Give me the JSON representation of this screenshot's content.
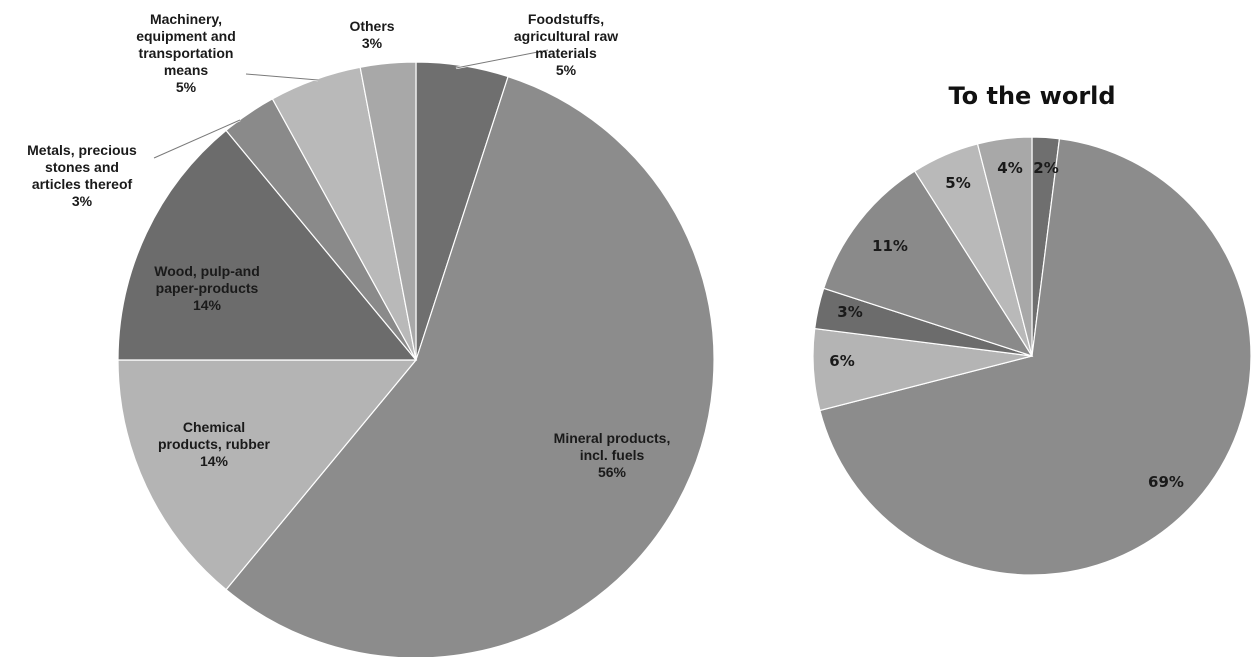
{
  "chart_data": [
    {
      "type": "pie",
      "title": "",
      "slices": [
        {
          "label_lines": [
            "Foodstuffs,",
            "agricultural raw",
            "materials",
            "5%"
          ],
          "value": 5,
          "color": "#6f6f6f"
        },
        {
          "label_lines": [
            "Mineral products,",
            "incl. fuels",
            "56%"
          ],
          "value": 56,
          "color": "#8c8c8c"
        },
        {
          "label_lines": [
            "Chemical",
            "products, rubber",
            "14%"
          ],
          "value": 14,
          "color": "#b4b4b4"
        },
        {
          "label_lines": [
            "Wood, pulp-and",
            "paper-products",
            "14%"
          ],
          "value": 14,
          "color": "#6c6c6c"
        },
        {
          "label_lines": [
            "Metals, precious",
            "stones and",
            "articles thereof",
            "3%"
          ],
          "value": 3,
          "color": "#8a8a8a"
        },
        {
          "label_lines": [
            "Machinery,",
            "equipment and",
            "transportation",
            "means",
            "5%"
          ],
          "value": 5,
          "color": "#b9b9b9"
        },
        {
          "label_lines": [
            "Others",
            "3%"
          ],
          "value": 3,
          "color": "#a8a8a8"
        }
      ]
    },
    {
      "type": "pie",
      "title": "To the world",
      "slices": [
        {
          "label_lines": [
            "2%"
          ],
          "value": 2,
          "color": "#6f6f6f"
        },
        {
          "label_lines": [
            "69%"
          ],
          "value": 69,
          "color": "#8c8c8c"
        },
        {
          "label_lines": [
            "6%"
          ],
          "value": 6,
          "color": "#b4b4b4"
        },
        {
          "label_lines": [
            "3%"
          ],
          "value": 3,
          "color": "#6c6c6c"
        },
        {
          "label_lines": [
            "11%"
          ],
          "value": 11,
          "color": "#8a8a8a"
        },
        {
          "label_lines": [
            "5%"
          ],
          "value": 5,
          "color": "#b9b9b9"
        },
        {
          "label_lines": [
            "4%"
          ],
          "value": 4,
          "color": "#a8a8a8"
        }
      ]
    }
  ]
}
